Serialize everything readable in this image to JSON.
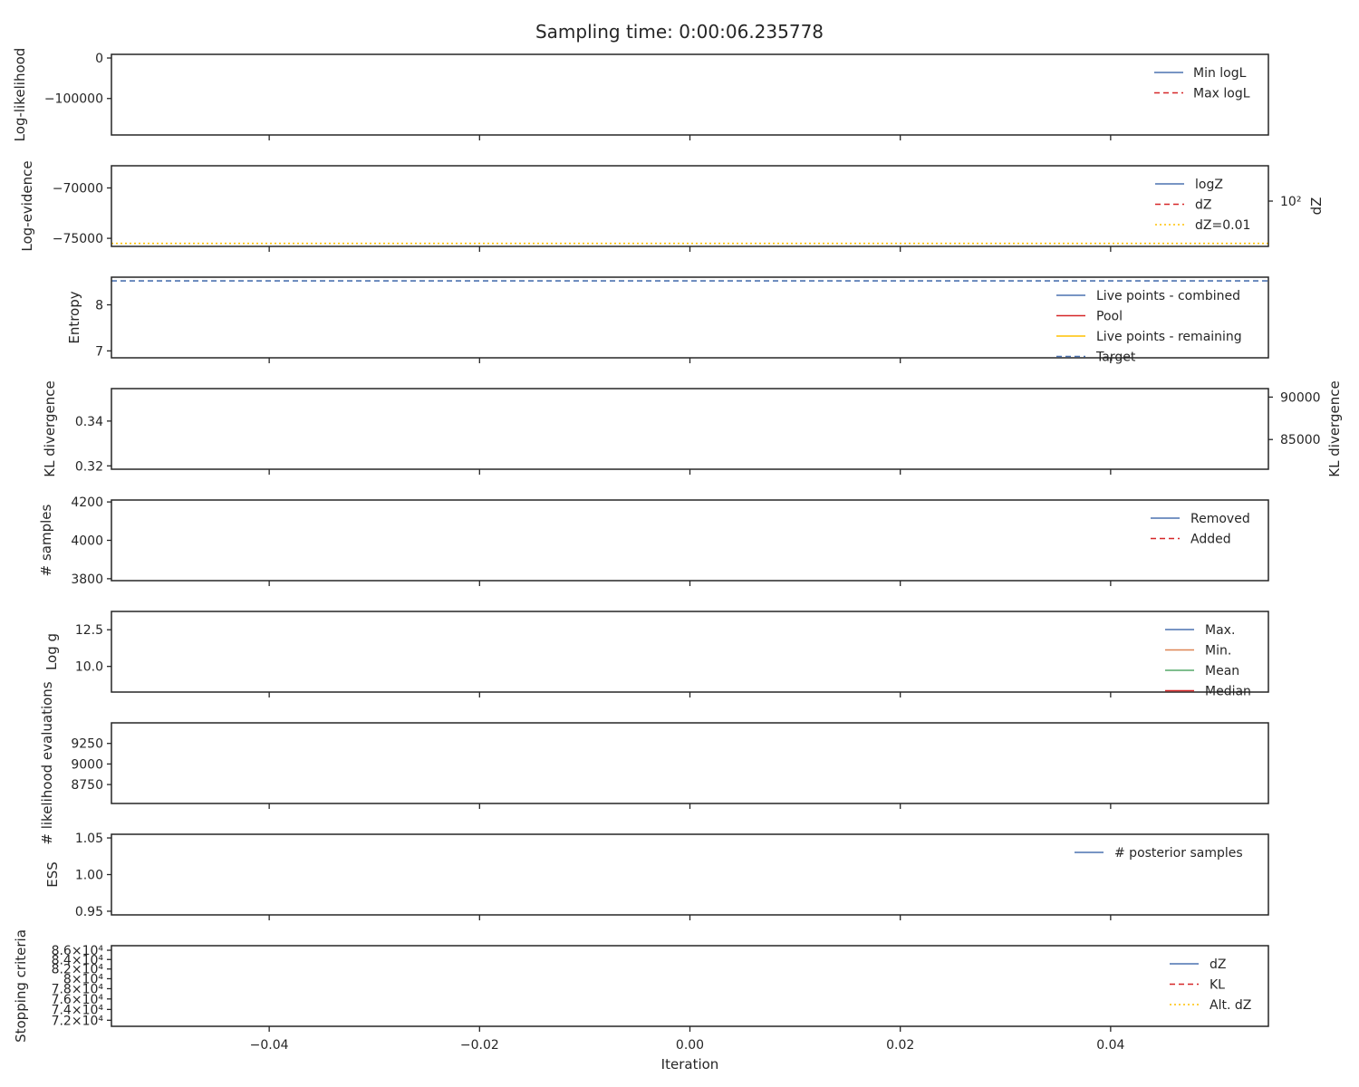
{
  "title": "Sampling time: 0:00:06.235778",
  "colors": {
    "blue": "#4c72b0",
    "red": "#d62728",
    "orange": "#dd8452",
    "green": "#55a868",
    "yellow": "#ffc000",
    "axis": "#262626"
  },
  "chart_data": [
    {
      "type": "line",
      "ylabel": "Log-likelihood",
      "yticks": [
        0,
        -100000
      ],
      "ytick_labels": [
        "0",
        "−100000"
      ],
      "ylim": [
        -190000,
        9000
      ],
      "series": [
        {
          "name": "Min logL",
          "style": "solid",
          "color": "#4c72b0",
          "values": []
        },
        {
          "name": "Max logL",
          "style": "dashed",
          "color": "#d62728",
          "values": []
        }
      ]
    },
    {
      "type": "line",
      "ylabel": "Log-evidence",
      "yticks": [
        -70000,
        -75000
      ],
      "ytick_labels": [
        "−70000",
        "−75000"
      ],
      "ylim": [
        -75800,
        -67800
      ],
      "right_ylabel": "dZ",
      "right_yticks": [
        1
      ],
      "right_ytick_labels": [
        "10²"
      ],
      "series": [
        {
          "name": "logZ",
          "style": "solid",
          "color": "#4c72b0",
          "values": []
        },
        {
          "name": "dZ",
          "style": "dashed",
          "color": "#d62728",
          "values": []
        },
        {
          "name": "dZ=0.01",
          "style": "dotted",
          "color": "#ffc000",
          "values": [
            -75500
          ]
        }
      ]
    },
    {
      "type": "line",
      "ylabel": "Entropy",
      "yticks": [
        8,
        7
      ],
      "ytick_labels": [
        "8",
        "7"
      ],
      "ylim": [
        6.85,
        8.6
      ],
      "series": [
        {
          "name": "Live points - combined",
          "style": "solid",
          "color": "#4c72b0",
          "values": []
        },
        {
          "name": "Pool",
          "style": "solid",
          "color": "#d62728",
          "values": []
        },
        {
          "name": "Live points - remaining",
          "style": "solid",
          "color": "#ffc000",
          "values": []
        },
        {
          "name": "Target",
          "style": "dashed",
          "color": "#4c72b0",
          "values": [
            8.52
          ]
        }
      ]
    },
    {
      "type": "line",
      "ylabel": "KL divergence",
      "yticks": [
        0.34,
        0.32
      ],
      "ytick_labels": [
        "0.34",
        "0.32"
      ],
      "ylim": [
        0.3185,
        0.3545
      ],
      "right_ylabel": "KL divergence",
      "right_yticks": [
        90000,
        85000
      ],
      "right_ytick_labels": [
        "90000",
        "85000"
      ],
      "right_ylim": [
        81500,
        91000
      ],
      "series": []
    },
    {
      "type": "line",
      "ylabel": "# samples",
      "yticks": [
        4200,
        4000,
        3800
      ],
      "ytick_labels": [
        "4200",
        "4000",
        "3800"
      ],
      "ylim": [
        3790,
        4210
      ],
      "series": [
        {
          "name": "Removed",
          "style": "solid",
          "color": "#4c72b0",
          "values": []
        },
        {
          "name": "Added",
          "style": "dashed",
          "color": "#d62728",
          "values": []
        }
      ]
    },
    {
      "type": "line",
      "ylabel": "Log g",
      "yticks": [
        12.5,
        10.0
      ],
      "ytick_labels": [
        "12.5",
        "10.0"
      ],
      "ylim": [
        8.25,
        13.75
      ],
      "series": [
        {
          "name": "Max.",
          "style": "solid",
          "color": "#4c72b0",
          "values": []
        },
        {
          "name": "Min.",
          "style": "solid",
          "color": "#dd8452",
          "values": []
        },
        {
          "name": "Mean",
          "style": "solid",
          "color": "#55a868",
          "values": []
        },
        {
          "name": "Median",
          "style": "solid",
          "color": "#d62728",
          "values": []
        }
      ]
    },
    {
      "type": "line",
      "ylabel": "# likelihood evaluations",
      "yticks": [
        9250,
        9000,
        8750
      ],
      "ytick_labels": [
        "9250",
        "9000",
        "8750"
      ],
      "ylim": [
        8520,
        9500
      ],
      "series": []
    },
    {
      "type": "line",
      "ylabel": "ESS",
      "yticks": [
        1.05,
        1.0,
        0.95
      ],
      "ytick_labels": [
        "1.05",
        "1.00",
        "0.95"
      ],
      "ylim": [
        0.945,
        1.055
      ],
      "series": [
        {
          "name": "# posterior samples",
          "style": "solid",
          "color": "#4c72b0",
          "values": []
        }
      ]
    },
    {
      "type": "line",
      "ylabel": "Stopping criteria",
      "yticks": [
        86000,
        84000,
        82000,
        80000,
        78000,
        76000,
        74000,
        72000
      ],
      "ytick_labels": [
        "8.6",
        "8.4",
        "8.2",
        "8",
        "7.8",
        "7.6",
        "7.4",
        "7.2"
      ],
      "ytick_suffix": "×10⁴",
      "ylim": [
        70900,
        87000
      ],
      "scale": "log",
      "xlabel": "Iteration",
      "series": [
        {
          "name": "dZ",
          "style": "solid",
          "color": "#4c72b0",
          "values": []
        },
        {
          "name": "KL",
          "style": "dashed",
          "color": "#d62728",
          "values": []
        },
        {
          "name": "Alt. dZ",
          "style": "dotted",
          "color": "#ffc000",
          "values": []
        }
      ]
    }
  ],
  "xaxis": {
    "label": "Iteration",
    "ticks": [
      -0.04,
      -0.02,
      0.0,
      0.02,
      0.04
    ],
    "tick_labels": [
      "−0.04",
      "−0.02",
      "0.00",
      "0.02",
      "0.04"
    ],
    "xlim": [
      -0.055,
      0.055
    ]
  }
}
